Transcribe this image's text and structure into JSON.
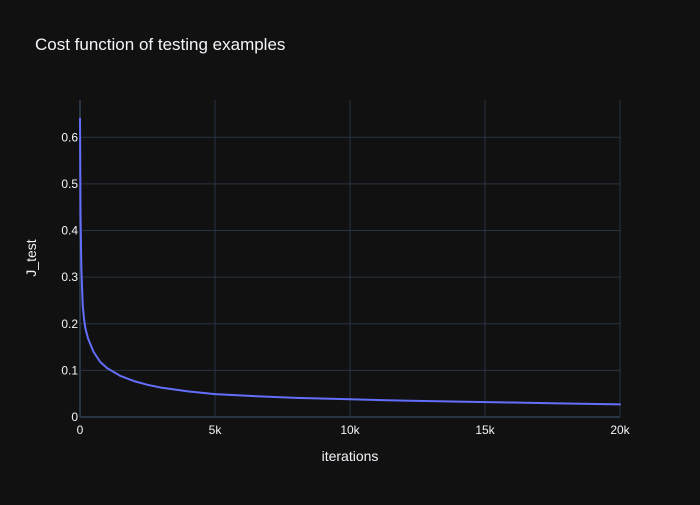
{
  "chart_data": {
    "type": "line",
    "title": "Cost function of testing examples",
    "xlabel": "iterations",
    "ylabel": "J_test",
    "xlim": [
      0,
      20000
    ],
    "ylim": [
      0,
      0.68
    ],
    "x_ticks": [
      0,
      5000,
      10000,
      15000,
      20000
    ],
    "x_tick_labels": [
      "0",
      "5k",
      "10k",
      "15k",
      "20k"
    ],
    "y_ticks": [
      0,
      0.1,
      0.2,
      0.3,
      0.4,
      0.5,
      0.6
    ],
    "y_tick_labels": [
      "0",
      "0.1",
      "0.2",
      "0.3",
      "0.4",
      "0.5",
      "0.6"
    ],
    "grid": true,
    "series": [
      {
        "color": "#636efa",
        "x": [
          0,
          20,
          50,
          100,
          150,
          200,
          300,
          500,
          750,
          1000,
          1500,
          2000,
          2500,
          3000,
          4000,
          5000,
          6000,
          8000,
          10000,
          12000,
          14000,
          16000,
          18000,
          20000
        ],
        "y": [
          0.64,
          0.43,
          0.32,
          0.24,
          0.21,
          0.19,
          0.168,
          0.14,
          0.118,
          0.105,
          0.088,
          0.077,
          0.069,
          0.063,
          0.055,
          0.049,
          0.046,
          0.041,
          0.038,
          0.035,
          0.033,
          0.031,
          0.029,
          0.027
        ]
      }
    ]
  },
  "colors": {
    "background": "#111111",
    "grid": "#283442",
    "zero_line": "#283442",
    "text": "#f2f5fa",
    "line": "#636efa"
  }
}
